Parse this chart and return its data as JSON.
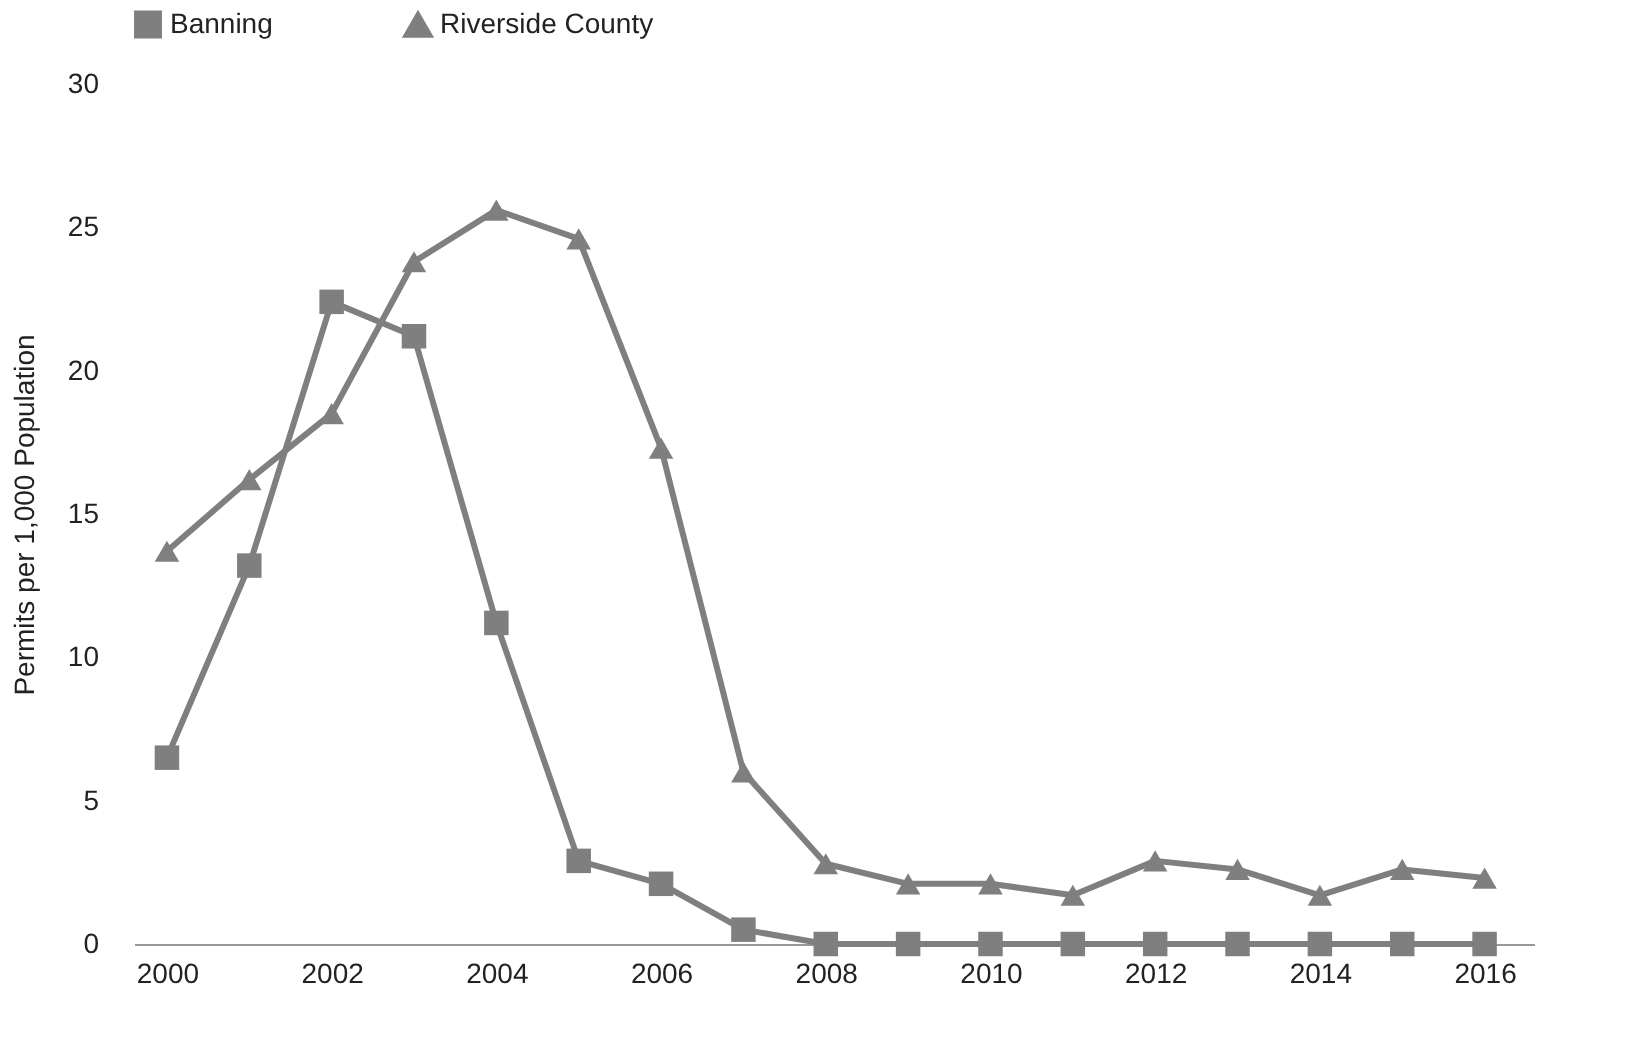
{
  "chart_data": {
    "type": "line",
    "ylabel": "Permits per 1,000 Population",
    "x": [
      2000,
      2001,
      2002,
      2003,
      2004,
      2005,
      2006,
      2007,
      2008,
      2009,
      2010,
      2011,
      2012,
      2013,
      2014,
      2015,
      2016
    ],
    "series": [
      {
        "name": "Banning",
        "color": "#7f7f7f",
        "marker": "square",
        "values": [
          6.5,
          13.2,
          22.4,
          21.2,
          11.2,
          2.9,
          2.1,
          0.5,
          0,
          0,
          0,
          0,
          0,
          0,
          0,
          0,
          0
        ]
      },
      {
        "name": "Riverside County",
        "color": "#7f7f7f",
        "marker": "triangle",
        "values": [
          13.7,
          16.2,
          18.5,
          23.8,
          25.6,
          24.6,
          17.3,
          6.0,
          2.8,
          2.1,
          2.1,
          1.7,
          2.9,
          2.6,
          1.7,
          2.6,
          2.3
        ]
      }
    ],
    "xlim": [
      1999.6,
      2016.6
    ],
    "xticks": [
      2000,
      2002,
      2004,
      2006,
      2008,
      2010,
      2012,
      2014,
      2016
    ],
    "ylim": [
      0,
      30
    ],
    "yticks": [
      0,
      5,
      10,
      15,
      20,
      25,
      30
    ],
    "grid": false,
    "legend": "top",
    "line_style": "solid"
  }
}
